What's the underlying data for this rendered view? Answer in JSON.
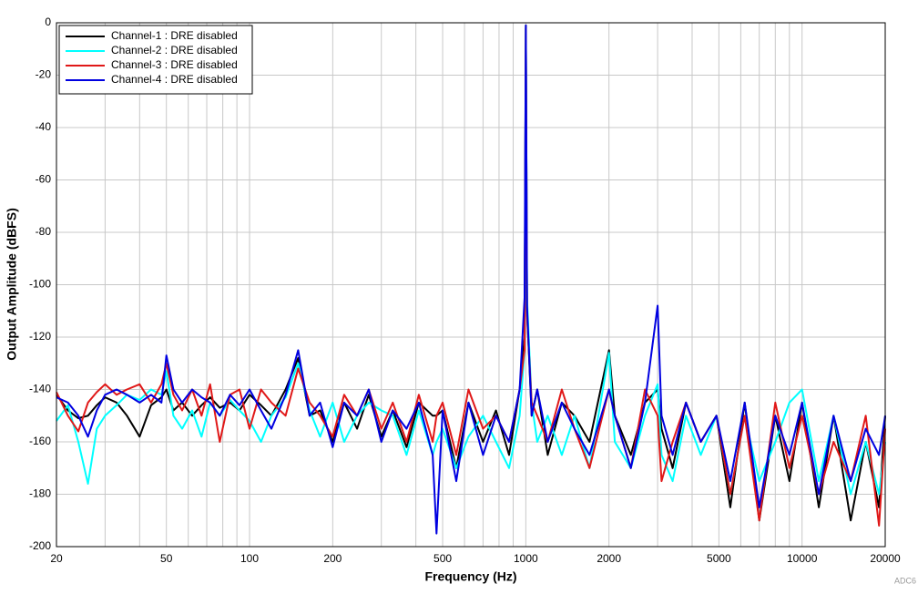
{
  "chart_data": {
    "type": "line",
    "xscale": "log",
    "xlabel": "Frequency (Hz)",
    "ylabel": "Output Amplitude (dBFS)",
    "annotation": "ADC6",
    "xlim": [
      20,
      20000
    ],
    "ylim": [
      -200,
      0
    ],
    "xticks": [
      20,
      50,
      100,
      200,
      500,
      1000,
      2000,
      5000,
      10000,
      20000
    ],
    "x_minor_grid": [
      30,
      40,
      60,
      70,
      80,
      90,
      300,
      400,
      600,
      700,
      800,
      900,
      3000,
      4000,
      6000,
      7000,
      8000,
      9000
    ],
    "yticks": [
      0,
      -20,
      -40,
      -60,
      -80,
      -100,
      -120,
      -140,
      -160,
      -180,
      -200
    ],
    "grid": true,
    "legend": "upper left",
    "x": [
      20,
      22,
      24,
      26,
      28,
      30,
      33,
      36,
      40,
      44,
      48,
      50,
      53,
      57,
      62,
      67,
      72,
      78,
      85,
      92,
      100,
      110,
      120,
      135,
      150,
      165,
      180,
      200,
      220,
      245,
      270,
      300,
      330,
      370,
      410,
      460,
      475,
      500,
      560,
      620,
      700,
      780,
      870,
      950,
      990,
      1000,
      1010,
      1050,
      1100,
      1200,
      1350,
      1500,
      1700,
      2000,
      2100,
      2400,
      2700,
      3000,
      3100,
      3400,
      3800,
      4300,
      4900,
      5500,
      6200,
      7000,
      8000,
      9000,
      10000,
      11500,
      13000,
      15000,
      17000,
      19000,
      20000
    ],
    "series": [
      {
        "name": "Channel-1 : DRE disabled",
        "color": "#000000",
        "values": [
          -142,
          -148,
          -151,
          -150,
          -146,
          -143,
          -145,
          -150,
          -158,
          -146,
          -143,
          -140,
          -148,
          -145,
          -150,
          -146,
          -143,
          -147,
          -145,
          -148,
          -142,
          -146,
          -150,
          -140,
          -128,
          -150,
          -148,
          -160,
          -145,
          -155,
          -142,
          -158,
          -148,
          -162,
          -145,
          -150,
          -150,
          -148,
          -170,
          -145,
          -160,
          -148,
          -165,
          -140,
          -120,
          -1,
          -110,
          -150,
          -140,
          -165,
          -145,
          -150,
          -160,
          -125,
          -150,
          -165,
          -145,
          -140,
          -155,
          -170,
          -145,
          -160,
          -150,
          -185,
          -145,
          -190,
          -150,
          -175,
          -145,
          -185,
          -150,
          -190,
          -160,
          -185,
          -150
        ]
      },
      {
        "name": "Channel-2 : DRE disabled",
        "color": "#00ffff",
        "values": [
          -152,
          -146,
          -160,
          -176,
          -155,
          -150,
          -146,
          -142,
          -144,
          -140,
          -142,
          -133,
          -150,
          -155,
          -148,
          -158,
          -145,
          -150,
          -144,
          -148,
          -152,
          -160,
          -150,
          -143,
          -130,
          -148,
          -158,
          -145,
          -160,
          -150,
          -145,
          -148,
          -150,
          -165,
          -148,
          -165,
          -160,
          -155,
          -170,
          -158,
          -150,
          -160,
          -170,
          -150,
          -125,
          -2,
          -105,
          -145,
          -160,
          -150,
          -165,
          -150,
          -170,
          -126,
          -160,
          -170,
          -150,
          -138,
          -165,
          -175,
          -150,
          -165,
          -150,
          -180,
          -150,
          -175,
          -160,
          -145,
          -140,
          -175,
          -150,
          -180,
          -160,
          -180,
          -160
        ]
      },
      {
        "name": "Channel-3 : DRE disabled",
        "color": "#e01818",
        "values": [
          -141,
          -150,
          -156,
          -145,
          -141,
          -138,
          -142,
          -140,
          -138,
          -145,
          -138,
          -130,
          -142,
          -148,
          -140,
          -150,
          -138,
          -160,
          -142,
          -140,
          -155,
          -140,
          -145,
          -150,
          -132,
          -145,
          -150,
          -158,
          -142,
          -150,
          -140,
          -155,
          -145,
          -160,
          -142,
          -160,
          -150,
          -145,
          -165,
          -140,
          -155,
          -150,
          -160,
          -140,
          -125,
          -2,
          -112,
          -145,
          -150,
          -160,
          -140,
          -155,
          -170,
          -140,
          -150,
          -170,
          -140,
          -150,
          -175,
          -160,
          -145,
          -160,
          -150,
          -180,
          -150,
          -190,
          -145,
          -170,
          -150,
          -180,
          -160,
          -175,
          -150,
          -192,
          -155
        ]
      },
      {
        "name": "Channel-4 : DRE disabled",
        "color": "#0000e0",
        "values": [
          -143,
          -145,
          -150,
          -158,
          -148,
          -142,
          -140,
          -142,
          -145,
          -142,
          -145,
          -127,
          -140,
          -145,
          -140,
          -143,
          -145,
          -150,
          -142,
          -146,
          -140,
          -148,
          -155,
          -142,
          -125,
          -150,
          -145,
          -162,
          -145,
          -150,
          -140,
          -160,
          -148,
          -155,
          -145,
          -165,
          -195,
          -148,
          -175,
          -145,
          -165,
          -150,
          -160,
          -140,
          -105,
          -1,
          -108,
          -150,
          -140,
          -160,
          -145,
          -155,
          -165,
          -140,
          -150,
          -170,
          -145,
          -108,
          -150,
          -165,
          -145,
          -160,
          -150,
          -175,
          -145,
          -185,
          -150,
          -165,
          -145,
          -180,
          -150,
          -175,
          -155,
          -165,
          -150
        ]
      }
    ]
  }
}
